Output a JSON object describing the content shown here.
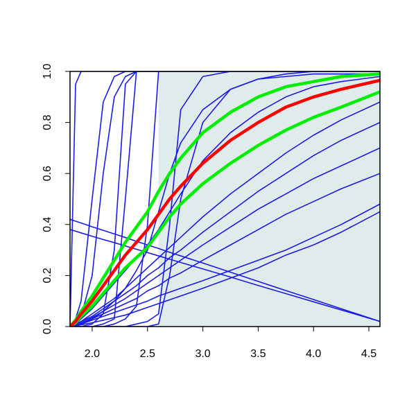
{
  "chart_data": {
    "type": "line",
    "x": [
      1.8,
      1.85,
      1.9,
      2.0,
      2.1,
      2.2,
      2.3,
      2.4,
      2.5,
      2.6,
      2.7,
      2.8,
      3.0,
      3.25,
      3.5,
      3.75,
      4.0,
      4.25,
      4.6
    ],
    "xlim": [
      1.8,
      4.6
    ],
    "ylim": [
      0,
      1
    ],
    "xticks": [
      {
        "value": 2,
        "label": "2.0"
      },
      {
        "value": 2.5,
        "label": "2.5"
      },
      {
        "value": 3,
        "label": "3.0"
      },
      {
        "value": 3.5,
        "label": "3.5"
      },
      {
        "value": 4,
        "label": "4.0"
      },
      {
        "value": 4.5,
        "label": "4.5"
      }
    ],
    "yticks": [
      {
        "value": 0,
        "label": "0.0"
      },
      {
        "value": 0.2,
        "label": "0.2"
      },
      {
        "value": 0.4,
        "label": "0.4"
      },
      {
        "value": 0.6,
        "label": "0.6"
      },
      {
        "value": 0.8,
        "label": "0.8"
      },
      {
        "value": 1,
        "label": "1.0"
      }
    ],
    "shade": {
      "x": [
        2.6,
        4.6
      ],
      "color": "#e0ecec"
    },
    "series": [
      {
        "color": "#1a1ae6",
        "values": [
          0,
          0.95,
          1,
          1,
          1,
          1,
          1,
          1,
          1,
          1,
          1,
          1,
          1,
          1,
          1,
          1,
          1,
          1,
          1
        ]
      },
      {
        "color": "#1a1ae6",
        "values": [
          0,
          0.03,
          0.1,
          0.5,
          0.88,
          0.98,
          1,
          1,
          1,
          1,
          1,
          1,
          1,
          1,
          1,
          1,
          1,
          1,
          1
        ]
      },
      {
        "color": "#1a1ae6",
        "values": [
          0,
          0.01,
          0.04,
          0.2,
          0.6,
          0.9,
          0.98,
          1,
          1,
          1,
          1,
          1,
          1,
          1,
          1,
          1,
          1,
          1,
          1
        ]
      },
      {
        "color": "#1a1ae6",
        "values": [
          0,
          0,
          0,
          0.01,
          0.05,
          0.3,
          0.95,
          1,
          1,
          1,
          1,
          1,
          1,
          1,
          1,
          1,
          1,
          1,
          1
        ]
      },
      {
        "color": "#1a1ae6",
        "values": [
          0,
          0,
          0,
          0,
          0.01,
          0.03,
          0.5,
          1,
          1,
          1,
          1,
          1,
          1,
          1,
          1,
          1,
          1,
          1,
          1
        ]
      },
      {
        "color": "#1a1ae6",
        "values": [
          0,
          0,
          0,
          0,
          0,
          0.01,
          0.03,
          0.08,
          0.4,
          1,
          1,
          1,
          1,
          1,
          1,
          1,
          1,
          1,
          1
        ]
      },
      {
        "color": "#1a1ae6",
        "values": [
          0,
          0,
          0,
          0,
          0,
          0,
          0,
          0.01,
          0.02,
          0.05,
          0.4,
          0.85,
          0.98,
          1,
          1,
          1,
          1,
          1,
          1
        ]
      },
      {
        "color": "#1a1ae6",
        "values": [
          0,
          0,
          0,
          0,
          0,
          0,
          0,
          0,
          0,
          0.01,
          0.2,
          0.5,
          0.8,
          0.93,
          0.97,
          0.99,
          1,
          1,
          1
        ]
      },
      {
        "color": "#1a1ae6",
        "values": [
          0,
          0,
          0.01,
          0.03,
          0.06,
          0.1,
          0.15,
          0.22,
          0.3,
          0.45,
          0.6,
          0.72,
          0.85,
          0.93,
          0.97,
          0.98,
          0.99,
          0.99,
          0.99
        ]
      },
      {
        "color": "#1a1ae6",
        "values": [
          0,
          0.01,
          0.03,
          0.07,
          0.12,
          0.17,
          0.22,
          0.27,
          0.32,
          0.38,
          0.45,
          0.52,
          0.65,
          0.76,
          0.84,
          0.9,
          0.94,
          0.96,
          0.98
        ]
      },
      {
        "color": "#1a1ae6",
        "values": [
          0,
          0.01,
          0.02,
          0.05,
          0.08,
          0.11,
          0.15,
          0.19,
          0.23,
          0.27,
          0.31,
          0.35,
          0.43,
          0.52,
          0.6,
          0.68,
          0.75,
          0.81,
          0.88
        ]
      },
      {
        "color": "#1a1ae6",
        "values": [
          0,
          0.01,
          0.02,
          0.04,
          0.07,
          0.1,
          0.13,
          0.16,
          0.2,
          0.23,
          0.27,
          0.3,
          0.37,
          0.45,
          0.53,
          0.6,
          0.67,
          0.73,
          0.8
        ]
      },
      {
        "color": "#1a1ae6",
        "values": [
          0,
          0.005,
          0.015,
          0.035,
          0.06,
          0.085,
          0.11,
          0.14,
          0.17,
          0.2,
          0.23,
          0.26,
          0.32,
          0.39,
          0.46,
          0.52,
          0.58,
          0.63,
          0.7
        ]
      },
      {
        "color": "#1a1ae6",
        "values": [
          0,
          0,
          0.01,
          0.03,
          0.05,
          0.07,
          0.09,
          0.11,
          0.14,
          0.16,
          0.19,
          0.21,
          0.26,
          0.32,
          0.38,
          0.44,
          0.49,
          0.54,
          0.6
        ]
      },
      {
        "color": "#1a1ae6",
        "values": [
          0,
          0.005,
          0.01,
          0.025,
          0.04,
          0.055,
          0.07,
          0.085,
          0.1,
          0.12,
          0.135,
          0.15,
          0.18,
          0.22,
          0.26,
          0.3,
          0.35,
          0.4,
          0.48
        ]
      },
      {
        "color": "#1a1ae6",
        "values": [
          0,
          0.003,
          0.007,
          0.015,
          0.025,
          0.035,
          0.045,
          0.06,
          0.075,
          0.09,
          0.105,
          0.12,
          0.15,
          0.19,
          0.23,
          0.28,
          0.32,
          0.37,
          0.45
        ]
      },
      {
        "color": "#1a1ae6",
        "values": [
          0.42,
          0.413,
          0.406,
          0.391,
          0.377,
          0.363,
          0.349,
          0.334,
          0.32,
          0.306,
          0.291,
          0.277,
          0.249,
          0.213,
          0.177,
          0.141,
          0.106,
          0.07,
          0.02
        ]
      },
      {
        "color": "#1a1ae6",
        "values": [
          0.38,
          0.374,
          0.367,
          0.354,
          0.341,
          0.329,
          0.316,
          0.303,
          0.29,
          0.277,
          0.264,
          0.251,
          0.226,
          0.194,
          0.161,
          0.129,
          0.097,
          0.065,
          0.02
        ]
      },
      {
        "color": "#00ee00",
        "values": [
          0,
          0.025,
          0.06,
          0.12,
          0.19,
          0.26,
          0.33,
          0.39,
          0.45,
          0.53,
          0.6,
          0.66,
          0.76,
          0.84,
          0.9,
          0.94,
          0.96,
          0.98,
          0.99
        ]
      },
      {
        "color": "#00ee00",
        "values": [
          0,
          0.015,
          0.04,
          0.08,
          0.13,
          0.18,
          0.23,
          0.27,
          0.31,
          0.37,
          0.43,
          0.48,
          0.56,
          0.64,
          0.71,
          0.77,
          0.82,
          0.86,
          0.92
        ]
      },
      {
        "color": "#ff0000",
        "values": [
          0,
          0.02,
          0.05,
          0.1,
          0.16,
          0.22,
          0.28,
          0.33,
          0.38,
          0.44,
          0.5,
          0.55,
          0.64,
          0.73,
          0.8,
          0.86,
          0.9,
          0.93,
          0.965
        ]
      }
    ]
  }
}
